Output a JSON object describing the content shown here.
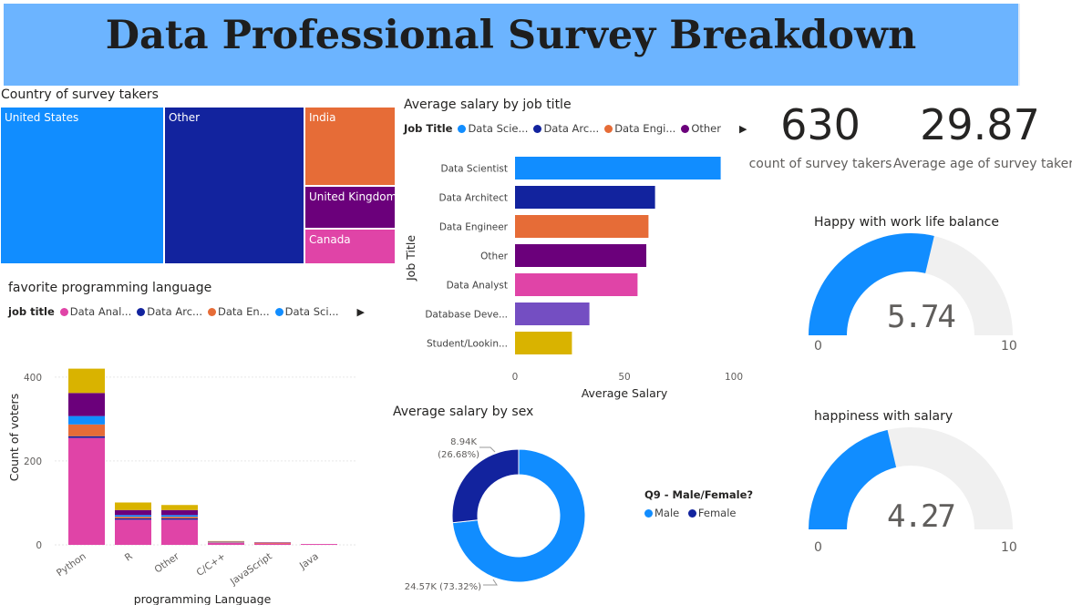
{
  "header": {
    "title": "Data Professional Survey Breakdown",
    "bg_color": "#6cb4ff"
  },
  "treemap": {
    "title": "Country of survey takers",
    "cells": [
      {
        "label": "United States",
        "color": "#118dff"
      },
      {
        "label": "Other",
        "color": "#12239e"
      },
      {
        "label": "India",
        "color": "#e66c37"
      },
      {
        "label": "United Kingdom",
        "color": "#6b007b"
      },
      {
        "label": "Canada",
        "color": "#e044a7"
      }
    ]
  },
  "kpis": {
    "count": {
      "value": "630",
      "label": "count of survey takers"
    },
    "age": {
      "value": "29.87",
      "label": "Average age of survey taker"
    }
  },
  "gauges": [
    {
      "title": "Happy with work life balance",
      "value_text": "5.74",
      "min_text": "0",
      "max_text": "10"
    },
    {
      "title": "happiness with salary",
      "value_text": "4.27",
      "min_text": "0",
      "max_text": "10"
    }
  ],
  "donut_legend": {
    "title": "Q9 - Male/Female?",
    "items": [
      "Male",
      "Female"
    ]
  },
  "chart_data": [
    {
      "type": "bar",
      "orientation": "horizontal",
      "title": "Average salary by job title",
      "legend_title": "Job Title",
      "legend_items": [
        {
          "label": "Data Scie...",
          "color": "#118dff"
        },
        {
          "label": "Data Arc...",
          "color": "#12239e"
        },
        {
          "label": "Data Engi...",
          "color": "#e66c37"
        },
        {
          "label": "Other",
          "color": "#6b007b"
        }
      ],
      "categories": [
        "Data Scientist",
        "Data Architect",
        "Data Engineer",
        "Other",
        "Data Analyst",
        "Database Deve...",
        "Student/Lookin..."
      ],
      "values": [
        94,
        64,
        61,
        60,
        56,
        34,
        26
      ],
      "colors": [
        "#118dff",
        "#12239e",
        "#e66c37",
        "#6b007b",
        "#e044a7",
        "#744ec2",
        "#d9b300"
      ],
      "xlabel": "Average Salary",
      "ylabel": "Job Title",
      "xticks": [
        "0",
        "50",
        "100"
      ],
      "xlim": [
        0,
        100
      ]
    },
    {
      "type": "bar",
      "stacked": true,
      "title": "favorite programming language",
      "legend_title": "job title",
      "legend_items": [
        {
          "label": "Data Anal...",
          "color": "#e044a7"
        },
        {
          "label": "Data Arc...",
          "color": "#12239e"
        },
        {
          "label": "Data En...",
          "color": "#e66c37"
        },
        {
          "label": "Data Sci...",
          "color": "#118dff"
        }
      ],
      "categories": [
        "Python",
        "R",
        "Other",
        "C/C++",
        "JavaScript",
        "Java"
      ],
      "series": [
        {
          "name": "Data Analyst",
          "color": "#e044a7",
          "values": [
            255,
            60,
            60,
            5,
            3,
            2
          ]
        },
        {
          "name": "Data Architect",
          "color": "#12239e",
          "values": [
            4,
            3,
            3,
            0,
            0,
            0
          ]
        },
        {
          "name": "Data Engineer",
          "color": "#e66c37",
          "values": [
            28,
            4,
            4,
            1,
            2,
            0
          ]
        },
        {
          "name": "Data Scientist",
          "color": "#118dff",
          "values": [
            20,
            4,
            4,
            1,
            0,
            0
          ]
        },
        {
          "name": "Other",
          "color": "#6b007b",
          "values": [
            55,
            12,
            12,
            1,
            1,
            0
          ]
        },
        {
          "name": "Student/Looking",
          "color": "#d9b300",
          "values": [
            58,
            18,
            12,
            1,
            0,
            0
          ]
        }
      ],
      "xlabel": "programming Language",
      "ylabel": "Count of voters",
      "yticks": [
        "0",
        "200",
        "400"
      ],
      "ylim": [
        0,
        430
      ]
    },
    {
      "type": "pie",
      "donut": true,
      "title": "Average salary by sex",
      "slices": [
        {
          "label": "Male",
          "value": 24.57,
          "color": "#118dff",
          "data_label": "24.57K (73.32%)"
        },
        {
          "label": "Female",
          "value": 8.94,
          "color": "#12239e",
          "data_label": "8.94K (26.68%)"
        }
      ]
    }
  ]
}
